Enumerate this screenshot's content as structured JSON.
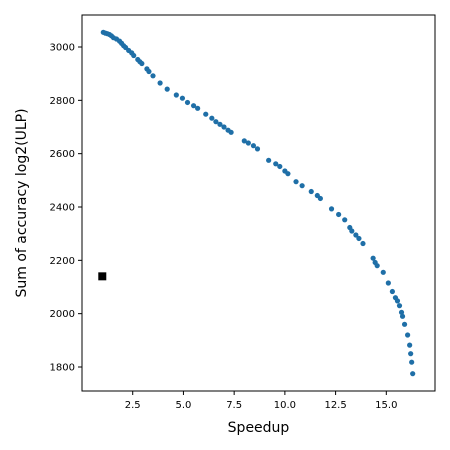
{
  "chart_data": {
    "type": "scatter",
    "title": "",
    "xlabel": "Speedup",
    "ylabel": "Sum of accuracy log2(ULP)",
    "xlim": [
      0.0,
      17.4
    ],
    "ylim": [
      1710,
      3120
    ],
    "xticks": [
      2.5,
      5.0,
      7.5,
      10.0,
      12.5,
      15.0
    ],
    "xtick_labels": [
      "2.5",
      "5.0",
      "7.5",
      "10.0",
      "12.5",
      "15.0"
    ],
    "yticks": [
      1800,
      2000,
      2200,
      2400,
      2600,
      2800,
      3000
    ],
    "ytick_labels": [
      "1800",
      "2000",
      "2200",
      "2400",
      "2600",
      "2800",
      "3000"
    ],
    "grid": false,
    "legend": "none",
    "colors": {
      "points": "#1f6fa7",
      "baseline": "#000000"
    },
    "series": [
      {
        "marker": "circle",
        "x": [
          1.05,
          1.15,
          1.25,
          1.35,
          1.45,
          1.55,
          1.7,
          1.85,
          1.95,
          2.05,
          2.15,
          2.3,
          2.45,
          2.55,
          2.75,
          2.85,
          2.95,
          3.2,
          3.3,
          3.5,
          3.85,
          4.2,
          4.65,
          4.95,
          5.2,
          5.5,
          5.7,
          6.1,
          6.4,
          6.6,
          6.8,
          7.0,
          7.2,
          7.35,
          8.0,
          8.2,
          8.45,
          8.65,
          9.2,
          9.55,
          9.75,
          10.0,
          10.15,
          10.55,
          10.85,
          11.3,
          11.6,
          11.75,
          12.3,
          12.65,
          12.95,
          13.2,
          13.3,
          13.5,
          13.65,
          13.85,
          14.35,
          14.45,
          14.55,
          14.85,
          15.1,
          15.3,
          15.45,
          15.55,
          15.65,
          15.75,
          15.8,
          15.9,
          16.05,
          16.15,
          16.2,
          16.25,
          16.3
        ],
        "y": [
          3055,
          3052,
          3050,
          3047,
          3042,
          3035,
          3030,
          3022,
          3014,
          3005,
          2998,
          2987,
          2978,
          2968,
          2953,
          2945,
          2938,
          2918,
          2908,
          2892,
          2865,
          2842,
          2820,
          2808,
          2792,
          2780,
          2770,
          2748,
          2733,
          2720,
          2710,
          2700,
          2688,
          2680,
          2648,
          2640,
          2630,
          2618,
          2575,
          2562,
          2552,
          2535,
          2525,
          2495,
          2480,
          2458,
          2443,
          2432,
          2393,
          2372,
          2352,
          2323,
          2310,
          2295,
          2282,
          2263,
          2208,
          2192,
          2180,
          2155,
          2115,
          2083,
          2060,
          2048,
          2030,
          2005,
          1990,
          1960,
          1920,
          1882,
          1850,
          1818,
          1775
        ]
      },
      {
        "marker": "square",
        "x": [
          1.0
        ],
        "y": [
          2140
        ]
      }
    ]
  }
}
